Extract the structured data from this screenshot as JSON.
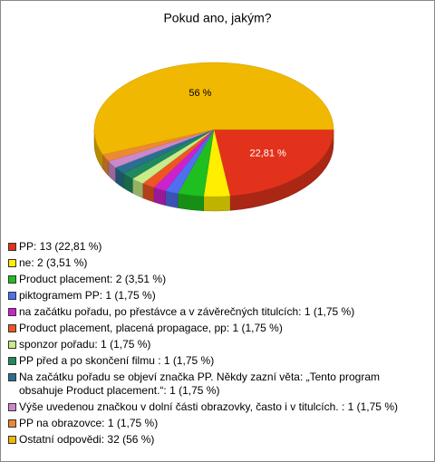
{
  "chart_data": {
    "type": "pie",
    "title": "Pokud ano, jakým?",
    "categories": [
      "PP: 13 (22,81 %)",
      "ne: 2 (3,51 %)",
      "Product placement: 2 (3,51 %)",
      "piktogramem PP: 1 (1,75 %)",
      "na začátku pořadu, po přestávce a v závěrečných titulcích: 1 (1,75 %)",
      "Product placement, placená propagace, pp: 1 (1,75 %)",
      "sponzor pořadu: 1 (1,75 %)",
      "PP před a po skončení filmu : 1 (1,75 %)",
      "Na začátku pořadu se objeví značka PP. Někdy zazní věta: „Tento program obsahuje Product placement.“: 1 (1,75 %)",
      "Výše uvedenou značkou v dolní části obrazovky, často i v titulcích. : 1 (1,75 %)",
      "PP na obrazovce: 1 (1,75 %)",
      "Ostatní odpovědi: 32 (56 %)"
    ],
    "values": [
      22.81,
      3.51,
      3.51,
      1.75,
      1.75,
      1.75,
      1.75,
      1.75,
      1.75,
      1.75,
      1.75,
      56
    ],
    "value_labels": [
      "22,81 %",
      null,
      null,
      null,
      null,
      null,
      null,
      null,
      null,
      null,
      null,
      "56 %"
    ],
    "colors": [
      "#e2321c",
      "#ffee00",
      "#1fbf1f",
      "#4f6ef0",
      "#cc22cc",
      "#ee5522",
      "#c8ec88",
      "#1f8a5e",
      "#2a6f8f",
      "#cc88cc",
      "#ee8833",
      "#f0b800"
    ]
  }
}
